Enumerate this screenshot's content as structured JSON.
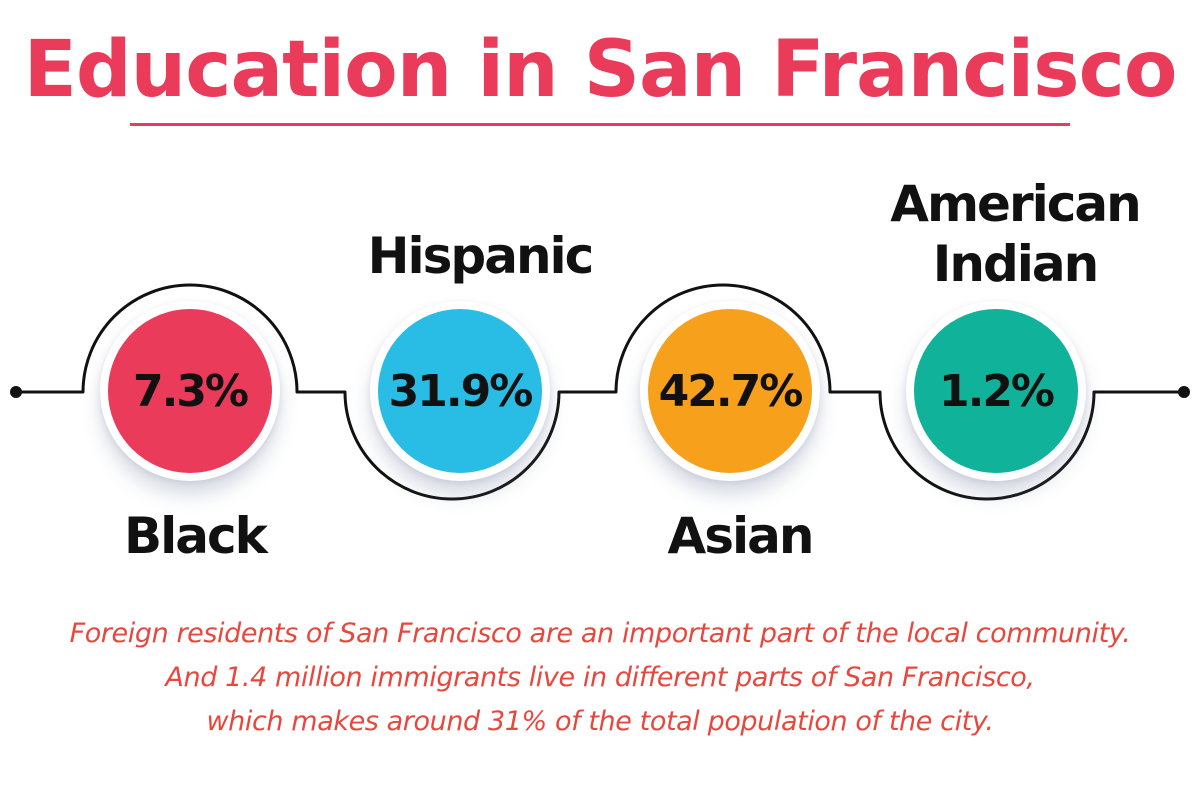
{
  "title": "Education in San Francisco",
  "groups": [
    {
      "label_lines": [
        "Black"
      ],
      "value": "7.3%",
      "color": "#ea3b5b"
    },
    {
      "label_lines": [
        "Hispanic"
      ],
      "value": "31.9%",
      "color": "#29bde6"
    },
    {
      "label_lines": [
        "Asian"
      ],
      "value": "42.7%",
      "color": "#f7a01c"
    },
    {
      "label_lines": [
        "American",
        "Indian"
      ],
      "value": "1.2%",
      "color": "#10b39a"
    }
  ],
  "caption_lines": [
    "Foreign residents of San Francisco are an important part of the local community.",
    "And 1.4 million immigrants live in different parts of San Francisco,",
    "which makes around 31% of the total population of the city."
  ],
  "colors": {
    "title": "#ea3b5b",
    "caption": "#e8473e",
    "line": "#111111"
  }
}
